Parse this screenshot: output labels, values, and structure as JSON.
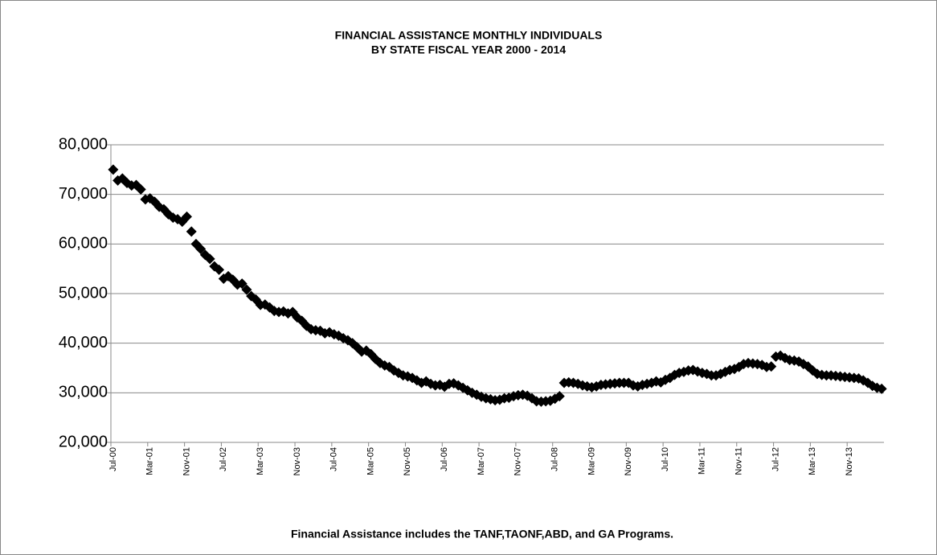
{
  "chart_data": {
    "type": "line",
    "title": "FINANCIAL ASSISTANCE MONTHLY INDIVIDUALS",
    "subtitle": "BY STATE FISCAL YEAR 2000 - 2014",
    "annotation": "Financial Assistance includes the TANF,TAONF,ABD, and GA Programs.",
    "categories": [
      "Jul-00",
      null,
      null,
      null,
      null,
      null,
      null,
      null,
      "Mar-01",
      null,
      null,
      null,
      null,
      null,
      null,
      null,
      "Nov-01",
      null,
      null,
      null,
      null,
      null,
      null,
      null,
      "Jul-02",
      null,
      null,
      null,
      null,
      null,
      null,
      null,
      "Mar-03",
      null,
      null,
      null,
      null,
      null,
      null,
      null,
      "Nov-03",
      null,
      null,
      null,
      null,
      null,
      null,
      null,
      "Jul-04",
      null,
      null,
      null,
      null,
      null,
      null,
      null,
      "Mar-05",
      null,
      null,
      null,
      null,
      null,
      null,
      null,
      "Nov-05",
      null,
      null,
      null,
      null,
      null,
      null,
      null,
      "Jul-06",
      null,
      null,
      null,
      null,
      null,
      null,
      null,
      "Mar-07",
      null,
      null,
      null,
      null,
      null,
      null,
      null,
      "Nov-07",
      null,
      null,
      null,
      null,
      null,
      null,
      null,
      "Jul-08",
      null,
      null,
      null,
      null,
      null,
      null,
      null,
      "Mar-09",
      null,
      null,
      null,
      null,
      null,
      null,
      null,
      "Nov-09",
      null,
      null,
      null,
      null,
      null,
      null,
      null,
      "Jul-10",
      null,
      null,
      null,
      null,
      null,
      null,
      null,
      "Mar-11",
      null,
      null,
      null,
      null,
      null,
      null,
      null,
      "Nov-11",
      null,
      null,
      null,
      null,
      null,
      null,
      null,
      "Jul-12",
      null,
      null,
      null,
      null,
      null,
      null,
      null,
      "Mar-13",
      null,
      null,
      null,
      null,
      null,
      null,
      null,
      "Nov-13",
      null,
      null,
      null,
      null,
      null,
      null,
      null
    ],
    "values": [
      75000,
      72800,
      73200,
      72300,
      71800,
      71900,
      71000,
      69000,
      69200,
      68500,
      67500,
      67000,
      66000,
      65300,
      65000,
      64500,
      65500,
      62500,
      60000,
      59000,
      57800,
      57000,
      55500,
      54800,
      53000,
      53500,
      52800,
      51800,
      52000,
      50800,
      49500,
      48800,
      47700,
      47800,
      47200,
      46500,
      46300,
      46400,
      46000,
      46300,
      45200,
      44500,
      43500,
      42800,
      42600,
      42500,
      42000,
      42200,
      41800,
      41500,
      41000,
      40600,
      40000,
      39200,
      38300,
      38500,
      37800,
      36800,
      36000,
      35500,
      35200,
      34500,
      34000,
      33500,
      33300,
      33000,
      32500,
      32000,
      32300,
      31800,
      31500,
      31600,
      31200,
      31800,
      31900,
      31500,
      31000,
      30500,
      30000,
      29600,
      29200,
      28900,
      28700,
      28500,
      28600,
      28900,
      29000,
      29300,
      29500,
      29600,
      29400,
      28900,
      28300,
      28200,
      28300,
      28400,
      28800,
      29300,
      32000,
      32100,
      32000,
      31800,
      31500,
      31300,
      31100,
      31300,
      31600,
      31700,
      31800,
      31900,
      32000,
      32000,
      32000,
      31500,
      31300,
      31600,
      31800,
      32000,
      32300,
      32100,
      32600,
      33000,
      33600,
      34000,
      34200,
      34500,
      34600,
      34300,
      34000,
      33800,
      33500,
      33500,
      33800,
      34200,
      34600,
      34800,
      35200,
      35800,
      36000,
      35900,
      35800,
      35600,
      35200,
      35300,
      37300,
      37500,
      37000,
      36600,
      36500,
      36300,
      35800,
      35300,
      34500,
      33800,
      33600,
      33500,
      33500,
      33400,
      33300,
      33200,
      33100,
      33000,
      32900,
      32500,
      32000,
      31400,
      31000,
      30800
    ],
    "color": "#000000",
    "ylim": [
      20000,
      80000
    ],
    "yticks": [
      {
        "value": 20000,
        "label": "20,000"
      },
      {
        "value": 30000,
        "label": "30,000"
      },
      {
        "value": 40000,
        "label": "40,000"
      },
      {
        "value": 50000,
        "label": "50,000"
      },
      {
        "value": 60000,
        "label": "60,000"
      },
      {
        "value": 70000,
        "label": "70,000"
      },
      {
        "value": 80000,
        "label": "80,000"
      }
    ],
    "grid": true
  }
}
